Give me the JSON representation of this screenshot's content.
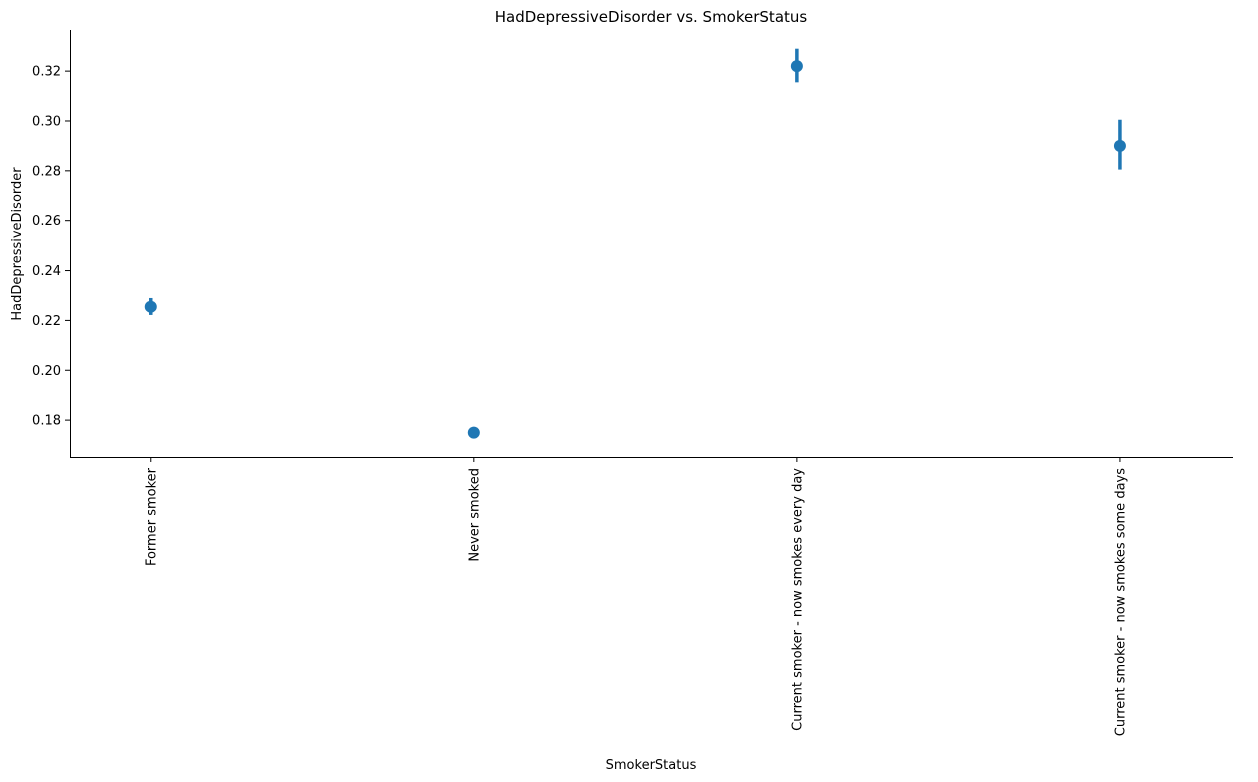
{
  "chart_data": {
    "type": "scatter",
    "subtype": "point-plot-with-error-bars",
    "title": "HadDepressiveDisorder vs. SmokerStatus",
    "xlabel": "SmokerStatus",
    "ylabel": "HadDepressiveDisorder",
    "categories": [
      "Former smoker",
      "Never smoked",
      "Current smoker - now smokes every day",
      "Current smoker - now smokes some days"
    ],
    "values": [
      0.2255,
      0.175,
      0.322,
      0.29
    ],
    "ci_low": [
      0.2222,
      0.1732,
      0.3155,
      0.2805
    ],
    "ci_high": [
      0.229,
      0.1768,
      0.329,
      0.3005
    ],
    "ylim": [
      0.1652,
      0.3365
    ],
    "yticks": [
      0.18,
      0.2,
      0.22,
      0.24,
      0.26,
      0.28,
      0.3,
      0.32
    ],
    "ytick_labels": [
      "0.18",
      "0.20",
      "0.22",
      "0.24",
      "0.26",
      "0.28",
      "0.30",
      "0.32"
    ],
    "color": "#1f77b4",
    "grid": false,
    "legend": "none"
  }
}
